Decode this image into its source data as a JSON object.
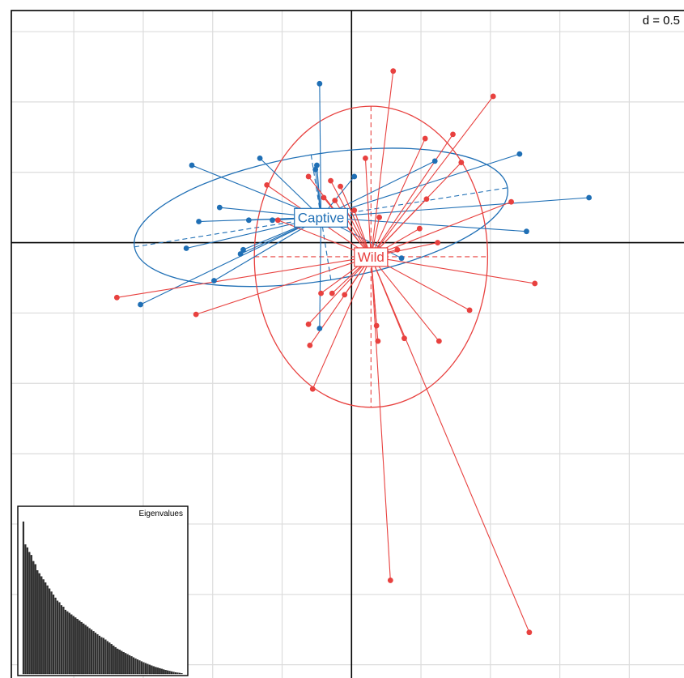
{
  "chart_data": {
    "type": "scatter",
    "title": "",
    "xlabel": "",
    "ylabel": "",
    "xlim": [
      -2.45,
      2.4
    ],
    "ylim": [
      -3.1,
      1.65
    ],
    "grid": true,
    "scale_label": "d = 0.5",
    "series": [
      {
        "name": "Captive",
        "color": "#1f6fb5",
        "centroid": [
          -0.22,
          0.18
        ],
        "ellipse": {
          "rx": 1.36,
          "ry": 0.45,
          "angle_deg": -9
        },
        "points": [
          [
            -0.23,
            1.13
          ],
          [
            -1.15,
            0.55
          ],
          [
            -0.66,
            0.6
          ],
          [
            -0.26,
            0.52
          ],
          [
            0.02,
            0.47
          ],
          [
            0.6,
            0.58
          ],
          [
            1.21,
            0.63
          ],
          [
            1.71,
            0.32
          ],
          [
            1.26,
            0.08
          ],
          [
            -0.95,
            0.25
          ],
          [
            -1.1,
            0.15
          ],
          [
            -0.74,
            0.16
          ],
          [
            -1.19,
            -0.04
          ],
          [
            -0.78,
            -0.05
          ],
          [
            -0.8,
            -0.08
          ],
          [
            -0.99,
            -0.27
          ],
          [
            -1.52,
            -0.44
          ],
          [
            -0.23,
            -0.61
          ],
          [
            0.36,
            -0.11
          ],
          [
            -0.57,
            0.16
          ],
          [
            -0.25,
            0.55
          ]
        ]
      },
      {
        "name": "Wild",
        "color": "#e8413f",
        "centroid": [
          0.14,
          -0.1
        ],
        "ellipse": {
          "rx": 0.84,
          "ry": 1.07,
          "angle_deg": 0
        },
        "points": [
          [
            0.3,
            1.22
          ],
          [
            1.02,
            1.04
          ],
          [
            0.73,
            0.77
          ],
          [
            0.53,
            0.74
          ],
          [
            0.79,
            0.57
          ],
          [
            0.54,
            0.31
          ],
          [
            1.15,
            0.29
          ],
          [
            1.32,
            -0.29
          ],
          [
            0.85,
            -0.48
          ],
          [
            0.63,
            -0.7
          ],
          [
            0.38,
            -0.68
          ],
          [
            0.18,
            -0.59
          ],
          [
            0.19,
            -0.7
          ],
          [
            0.28,
            -2.4
          ],
          [
            1.28,
            -2.77
          ],
          [
            -0.31,
            -0.58
          ],
          [
            -0.3,
            -0.73
          ],
          [
            -0.28,
            -1.04
          ],
          [
            -0.22,
            -0.36
          ],
          [
            -0.14,
            -0.36
          ],
          [
            -0.05,
            -0.37
          ],
          [
            -1.12,
            -0.51
          ],
          [
            -1.69,
            -0.39
          ],
          [
            -0.61,
            0.41
          ],
          [
            -0.15,
            0.44
          ],
          [
            -0.08,
            0.4
          ],
          [
            0.49,
            0.1
          ],
          [
            0.62,
            0.0
          ],
          [
            -0.31,
            0.47
          ],
          [
            -0.2,
            0.32
          ],
          [
            0.1,
            0.6
          ],
          [
            0.02,
            0.23
          ],
          [
            0.2,
            0.18
          ],
          [
            0.33,
            -0.05
          ],
          [
            -0.12,
            0.3
          ],
          [
            -0.53,
            0.16
          ]
        ]
      }
    ],
    "inset": {
      "title": "Eigenvalues",
      "values": [
        1.0,
        0.85,
        0.83,
        0.8,
        0.78,
        0.74,
        0.72,
        0.68,
        0.66,
        0.64,
        0.62,
        0.6,
        0.58,
        0.56,
        0.54,
        0.52,
        0.5,
        0.48,
        0.47,
        0.45,
        0.44,
        0.42,
        0.41,
        0.4,
        0.39,
        0.38,
        0.37,
        0.36,
        0.35,
        0.34,
        0.33,
        0.32,
        0.31,
        0.3,
        0.29,
        0.28,
        0.27,
        0.26,
        0.25,
        0.24,
        0.235,
        0.225,
        0.215,
        0.205,
        0.195,
        0.185,
        0.175,
        0.165,
        0.158,
        0.15,
        0.143,
        0.136,
        0.129,
        0.122,
        0.115,
        0.108,
        0.101,
        0.094,
        0.088,
        0.082,
        0.076,
        0.07,
        0.065,
        0.06,
        0.055,
        0.05,
        0.045,
        0.041,
        0.037,
        0.033,
        0.029,
        0.025,
        0.022,
        0.019,
        0.016,
        0.013,
        0.01,
        0.008,
        0.006,
        0.004
      ]
    }
  }
}
